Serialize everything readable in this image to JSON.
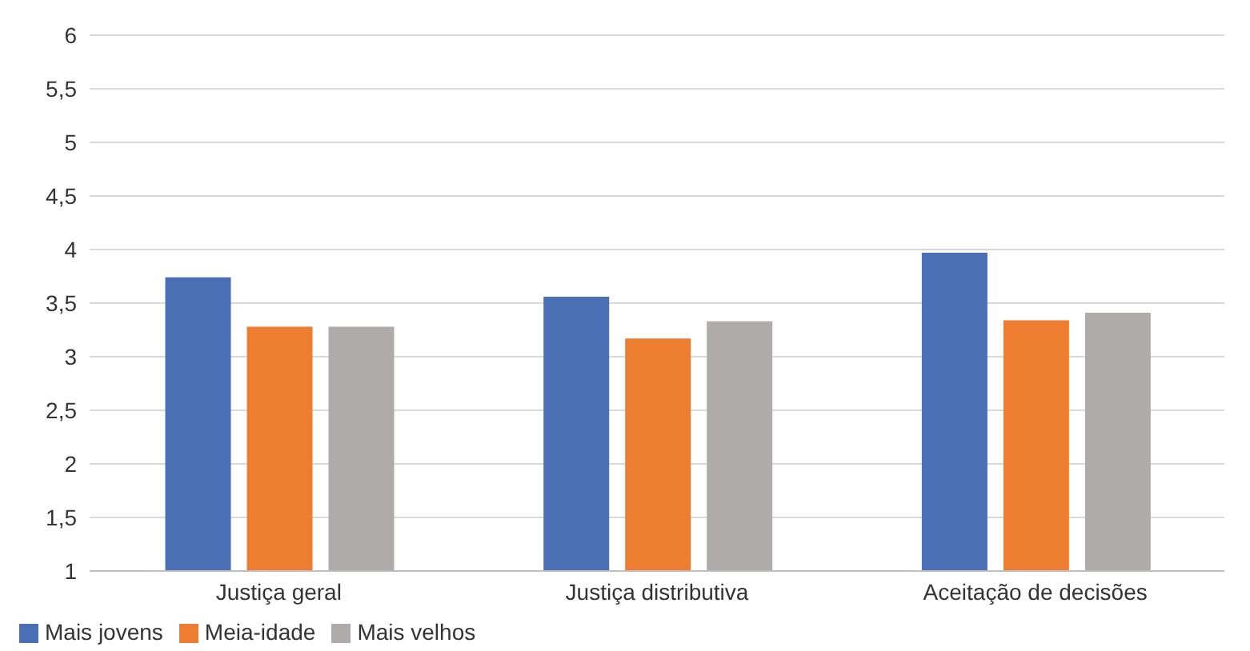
{
  "chart_data": {
    "type": "bar",
    "categories": [
      "Justiça geral",
      "Justiça distributiva",
      "Aceitação de decisões"
    ],
    "series": [
      {
        "name": "Mais jovens",
        "color": "#4a6fb5",
        "values": [
          3.74,
          3.56,
          3.97
        ]
      },
      {
        "name": "Meia-idade",
        "color": "#ed7d31",
        "values": [
          3.28,
          3.17,
          3.34
        ]
      },
      {
        "name": "Mais velhos",
        "color": "#afabab",
        "values": [
          3.28,
          3.33,
          3.41
        ]
      }
    ],
    "ylim": [
      1,
      6
    ],
    "yticks": [
      1,
      {
        "value": 1.5,
        "label": "1,5"
      },
      2,
      {
        "value": 2.5,
        "label": "2,5"
      },
      3,
      {
        "value": 3.5,
        "label": "3,5"
      },
      4,
      {
        "value": 4.5,
        "label": "4,5"
      },
      5,
      {
        "value": 5.5,
        "label": "5,5"
      },
      6
    ],
    "grid": "y",
    "legend": "bottom left"
  }
}
